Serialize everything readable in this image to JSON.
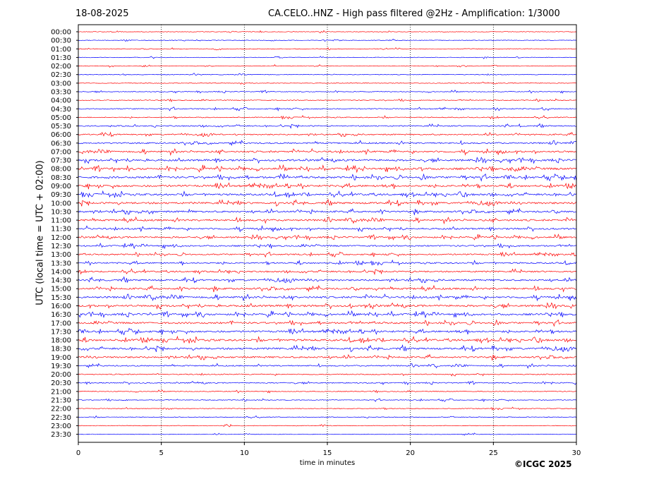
{
  "header": {
    "date": "18-08-2025",
    "station_title": "CA.CELO..HNZ - High pass filtered @2Hz - Amplification: 1/3000"
  },
  "copyright": "©ICGC 2025",
  "colors": {
    "red": "#ff0000",
    "blue": "#0000ff",
    "grid": "#000000"
  },
  "chart_data": {
    "type": "line",
    "title": "CA.CELO..HNZ - High pass filtered @2Hz - Amplification: 1/3000",
    "xlabel": "time in minutes",
    "ylabel": "UTC (local time = UTC + 02:00)",
    "xlim": [
      0,
      30
    ],
    "x_ticks": [
      "0",
      "5",
      "10",
      "15",
      "20",
      "25",
      "30"
    ],
    "vertical_gridlines_at": [
      5,
      10,
      15,
      20,
      25
    ],
    "series_colors_alternate": [
      "red",
      "blue"
    ],
    "rows": [
      {
        "label": "00:00",
        "activity": 0.03
      },
      {
        "label": "00:30",
        "activity": 0.03
      },
      {
        "label": "01:00",
        "activity": 0.03
      },
      {
        "label": "01:30",
        "activity": 0.04
      },
      {
        "label": "02:00",
        "activity": 0.03
      },
      {
        "label": "02:30",
        "activity": 0.05
      },
      {
        "label": "03:00",
        "activity": 0.08
      },
      {
        "label": "03:30",
        "activity": 0.12
      },
      {
        "label": "04:00",
        "activity": 0.15
      },
      {
        "label": "04:30",
        "activity": 0.22
      },
      {
        "label": "05:00",
        "activity": 0.2
      },
      {
        "label": "05:30",
        "activity": 0.3
      },
      {
        "label": "06:00",
        "activity": 0.4
      },
      {
        "label": "06:30",
        "activity": 0.5
      },
      {
        "label": "07:00",
        "activity": 0.65
      },
      {
        "label": "07:30",
        "activity": 0.7
      },
      {
        "label": "08:00",
        "activity": 0.8
      },
      {
        "label": "08:30",
        "activity": 0.75
      },
      {
        "label": "09:00",
        "activity": 0.75
      },
      {
        "label": "09:30",
        "activity": 0.7
      },
      {
        "label": "10:00",
        "activity": 0.7
      },
      {
        "label": "10:30",
        "activity": 0.65
      },
      {
        "label": "11:00",
        "activity": 0.65
      },
      {
        "label": "11:30",
        "activity": 0.6
      },
      {
        "label": "12:00",
        "activity": 0.55
      },
      {
        "label": "12:30",
        "activity": 0.5
      },
      {
        "label": "13:00",
        "activity": 0.45
      },
      {
        "label": "13:30",
        "activity": 0.5
      },
      {
        "label": "14:00",
        "activity": 0.5
      },
      {
        "label": "14:30",
        "activity": 0.6
      },
      {
        "label": "15:00",
        "activity": 0.65
      },
      {
        "label": "15:30",
        "activity": 0.7
      },
      {
        "label": "16:00",
        "activity": 0.75
      },
      {
        "label": "16:30",
        "activity": 0.7
      },
      {
        "label": "17:00",
        "activity": 0.65
      },
      {
        "label": "17:30",
        "activity": 0.7
      },
      {
        "label": "18:00",
        "activity": 0.75
      },
      {
        "label": "18:30",
        "activity": 0.7
      },
      {
        "label": "19:00",
        "activity": 0.6
      },
      {
        "label": "19:30",
        "activity": 0.35
      },
      {
        "label": "20:00",
        "activity": 0.25
      },
      {
        "label": "20:30",
        "activity": 0.25
      },
      {
        "label": "21:00",
        "activity": 0.12
      },
      {
        "label": "21:30",
        "activity": 0.1
      },
      {
        "label": "22:00",
        "activity": 0.08
      },
      {
        "label": "22:30",
        "activity": 0.06
      },
      {
        "label": "23:00",
        "activity": 0.06
      },
      {
        "label": "23:30",
        "activity": 0.04
      }
    ]
  }
}
